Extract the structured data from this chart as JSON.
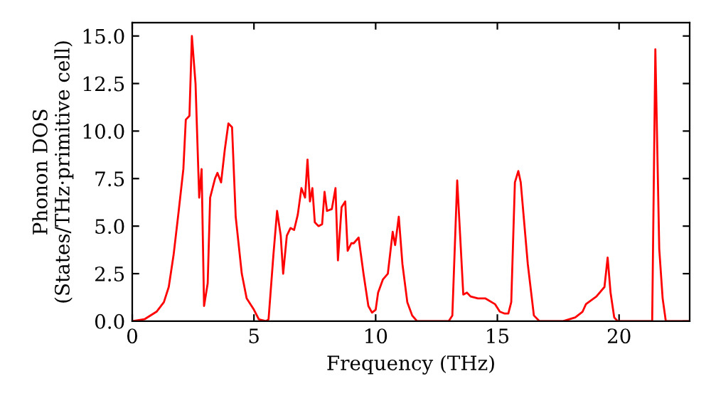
{
  "chart_data": {
    "type": "line",
    "xlabel": "Frequency (THz)",
    "ylabel": "Phonon DOS\n(States/THz·primitive cell)",
    "xlim": [
      0,
      22.9
    ],
    "ylim": [
      0,
      15.7
    ],
    "xticks": [
      0,
      5,
      10,
      15,
      20
    ],
    "yticks": [
      {
        "value": 0,
        "label": "0.0"
      },
      {
        "value": 2.5,
        "label": "2.5"
      },
      {
        "value": 5,
        "label": "5.0"
      },
      {
        "value": 7.5,
        "label": "7.5"
      },
      {
        "value": 10,
        "label": "10.0"
      },
      {
        "value": 12.5,
        "label": "12.5"
      },
      {
        "value": 15,
        "label": "15.0"
      }
    ],
    "grid": false,
    "legend": false,
    "line_style": "solid",
    "marker": "none",
    "series": [
      {
        "color": "#ff0000",
        "x": [
          0,
          0.5,
          1,
          1.3,
          1.5,
          1.7,
          1.9,
          2.1,
          2.2,
          2.35,
          2.45,
          2.6,
          2.75,
          2.85,
          2.95,
          3.1,
          3.2,
          3.4,
          3.5,
          3.65,
          3.8,
          3.95,
          4.1,
          4.25,
          4.5,
          4.7,
          5.0,
          5.2,
          5.5,
          5.6,
          5.8,
          5.95,
          6.1,
          6.2,
          6.35,
          6.5,
          6.65,
          6.8,
          6.95,
          7.1,
          7.2,
          7.3,
          7.4,
          7.5,
          7.65,
          7.8,
          7.9,
          8.0,
          8.2,
          8.35,
          8.45,
          8.6,
          8.75,
          8.85,
          9.0,
          9.1,
          9.3,
          9.5,
          9.7,
          9.85,
          10.0,
          10.1,
          10.3,
          10.5,
          10.7,
          10.8,
          10.95,
          11.1,
          11.3,
          11.5,
          11.7,
          13.0,
          13.15,
          13.35,
          13.6,
          13.75,
          13.9,
          14.2,
          14.5,
          14.9,
          15.1,
          15.3,
          15.45,
          15.57,
          15.72,
          15.86,
          15.96,
          16.25,
          16.5,
          16.73,
          17.7,
          18.2,
          18.5,
          18.64,
          19.07,
          19.4,
          19.53,
          19.65,
          19.8,
          19.94,
          21.36,
          21.49,
          21.65,
          21.79,
          21.92,
          22.9
        ],
        "values": [
          0,
          0.1,
          0.5,
          1.0,
          1.8,
          3.5,
          5.7,
          8.0,
          10.6,
          10.8,
          15.0,
          12.5,
          6.5,
          8.0,
          0.8,
          2.0,
          6.5,
          7.5,
          7.8,
          7.3,
          9.0,
          10.4,
          10.2,
          5.5,
          2.5,
          1.2,
          0.6,
          0.1,
          0,
          0.1,
          3.5,
          5.8,
          4.5,
          2.5,
          4.5,
          4.9,
          4.8,
          5.6,
          7.0,
          6.5,
          8.5,
          6.3,
          7.0,
          5.2,
          5.0,
          5.1,
          6.8,
          5.8,
          5.9,
          7.0,
          3.2,
          6.0,
          6.3,
          3.7,
          4.1,
          4.1,
          4.4,
          2.5,
          0.8,
          0.45,
          0.6,
          1.5,
          2.2,
          2.5,
          4.7,
          4.0,
          5.5,
          3.0,
          1.0,
          0.3,
          0,
          0,
          0.3,
          7.4,
          1.4,
          1.5,
          1.3,
          1.2,
          1.2,
          0.9,
          0.5,
          0.4,
          0.4,
          1.0,
          7.3,
          7.9,
          7.3,
          3.0,
          0.3,
          0,
          0,
          0.2,
          0.5,
          0.9,
          1.3,
          1.8,
          3.35,
          1.5,
          0.2,
          0,
          0,
          14.3,
          3.8,
          1.2,
          0,
          0
        ]
      }
    ]
  }
}
